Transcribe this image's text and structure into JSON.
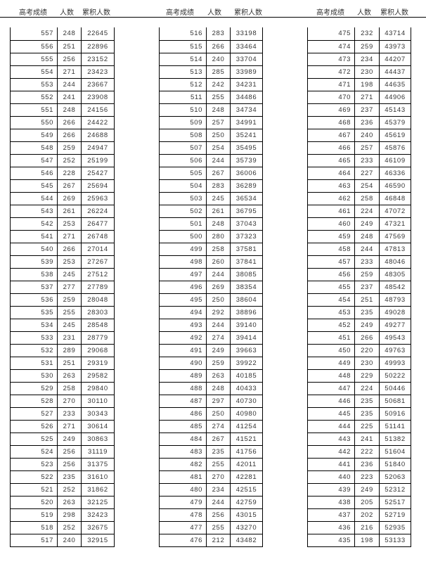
{
  "headers": {
    "score": "高考成绩",
    "count": "人数",
    "cumulative": "累积人数"
  },
  "tables": [
    {
      "rows": [
        [
          557,
          248,
          22645
        ],
        [
          556,
          251,
          22896
        ],
        [
          555,
          256,
          23152
        ],
        [
          554,
          271,
          23423
        ],
        [
          553,
          244,
          23667
        ],
        [
          552,
          241,
          23908
        ],
        [
          551,
          248,
          24156
        ],
        [
          550,
          266,
          24422
        ],
        [
          549,
          266,
          24688
        ],
        [
          548,
          259,
          24947
        ],
        [
          547,
          252,
          25199
        ],
        [
          546,
          228,
          25427
        ],
        [
          545,
          267,
          25694
        ],
        [
          544,
          269,
          25963
        ],
        [
          543,
          261,
          26224
        ],
        [
          542,
          253,
          26477
        ],
        [
          541,
          271,
          26748
        ],
        [
          540,
          266,
          27014
        ],
        [
          539,
          253,
          27267
        ],
        [
          538,
          245,
          27512
        ],
        [
          537,
          277,
          27789
        ],
        [
          536,
          259,
          28048
        ],
        [
          535,
          255,
          28303
        ],
        [
          534,
          245,
          28548
        ],
        [
          533,
          231,
          28779
        ],
        [
          532,
          289,
          29068
        ],
        [
          531,
          251,
          29319
        ],
        [
          530,
          263,
          29582
        ],
        [
          529,
          258,
          29840
        ],
        [
          528,
          270,
          30110
        ],
        [
          527,
          233,
          30343
        ],
        [
          526,
          271,
          30614
        ],
        [
          525,
          249,
          30863
        ],
        [
          524,
          256,
          31119
        ],
        [
          523,
          256,
          31375
        ],
        [
          522,
          235,
          31610
        ],
        [
          521,
          252,
          31862
        ],
        [
          520,
          263,
          32125
        ],
        [
          519,
          298,
          32423
        ],
        [
          518,
          252,
          32675
        ],
        [
          517,
          240,
          32915
        ]
      ]
    },
    {
      "rows": [
        [
          516,
          283,
          33198
        ],
        [
          515,
          266,
          33464
        ],
        [
          514,
          240,
          33704
        ],
        [
          513,
          285,
          33989
        ],
        [
          512,
          242,
          34231
        ],
        [
          511,
          255,
          34486
        ],
        [
          510,
          248,
          34734
        ],
        [
          509,
          257,
          34991
        ],
        [
          508,
          250,
          35241
        ],
        [
          507,
          254,
          35495
        ],
        [
          506,
          244,
          35739
        ],
        [
          505,
          267,
          36006
        ],
        [
          504,
          283,
          36289
        ],
        [
          503,
          245,
          36534
        ],
        [
          502,
          261,
          36795
        ],
        [
          501,
          248,
          37043
        ],
        [
          500,
          280,
          37323
        ],
        [
          499,
          258,
          37581
        ],
        [
          498,
          260,
          37841
        ],
        [
          497,
          244,
          38085
        ],
        [
          496,
          269,
          38354
        ],
        [
          495,
          250,
          38604
        ],
        [
          494,
          292,
          38896
        ],
        [
          493,
          244,
          39140
        ],
        [
          492,
          274,
          39414
        ],
        [
          491,
          249,
          39663
        ],
        [
          490,
          259,
          39922
        ],
        [
          489,
          263,
          40185
        ],
        [
          488,
          248,
          40433
        ],
        [
          487,
          297,
          40730
        ],
        [
          486,
          250,
          40980
        ],
        [
          485,
          274,
          41254
        ],
        [
          484,
          267,
          41521
        ],
        [
          483,
          235,
          41756
        ],
        [
          482,
          255,
          42011
        ],
        [
          481,
          270,
          42281
        ],
        [
          480,
          234,
          42515
        ],
        [
          479,
          244,
          42759
        ],
        [
          478,
          256,
          43015
        ],
        [
          477,
          255,
          43270
        ],
        [
          476,
          212,
          43482
        ]
      ]
    },
    {
      "rows": [
        [
          475,
          232,
          43714
        ],
        [
          474,
          259,
          43973
        ],
        [
          473,
          234,
          44207
        ],
        [
          472,
          230,
          44437
        ],
        [
          471,
          198,
          44635
        ],
        [
          470,
          271,
          44906
        ],
        [
          469,
          237,
          45143
        ],
        [
          468,
          236,
          45379
        ],
        [
          467,
          240,
          45619
        ],
        [
          466,
          257,
          45876
        ],
        [
          465,
          233,
          46109
        ],
        [
          464,
          227,
          46336
        ],
        [
          463,
          254,
          46590
        ],
        [
          462,
          258,
          46848
        ],
        [
          461,
          224,
          47072
        ],
        [
          460,
          249,
          47321
        ],
        [
          459,
          248,
          47569
        ],
        [
          458,
          244,
          47813
        ],
        [
          457,
          233,
          48046
        ],
        [
          456,
          259,
          48305
        ],
        [
          455,
          237,
          48542
        ],
        [
          454,
          251,
          48793
        ],
        [
          453,
          235,
          49028
        ],
        [
          452,
          249,
          49277
        ],
        [
          451,
          266,
          49543
        ],
        [
          450,
          220,
          49763
        ],
        [
          449,
          230,
          49993
        ],
        [
          448,
          229,
          50222
        ],
        [
          447,
          224,
          50446
        ],
        [
          446,
          235,
          50681
        ],
        [
          445,
          235,
          50916
        ],
        [
          444,
          225,
          51141
        ],
        [
          443,
          241,
          51382
        ],
        [
          442,
          222,
          51604
        ],
        [
          441,
          236,
          51840
        ],
        [
          440,
          223,
          52063
        ],
        [
          439,
          249,
          52312
        ],
        [
          438,
          205,
          52517
        ],
        [
          437,
          202,
          52719
        ],
        [
          436,
          216,
          52935
        ],
        [
          435,
          198,
          53133
        ]
      ]
    }
  ]
}
